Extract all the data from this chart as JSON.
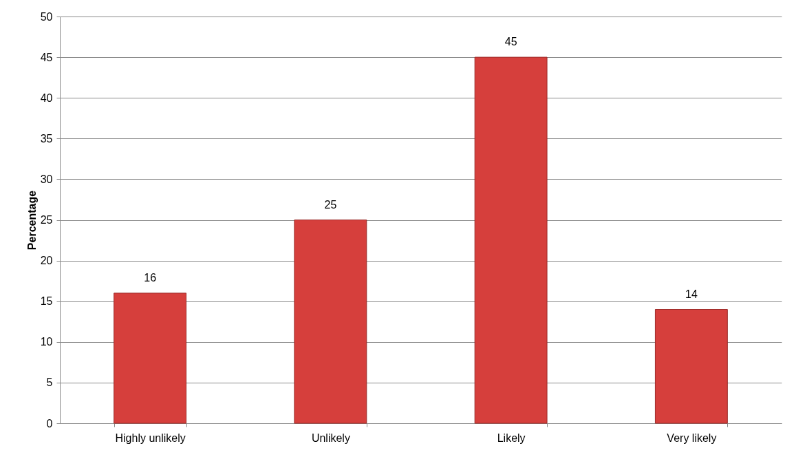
{
  "chart_data": {
    "type": "bar",
    "ylabel": "Percentage",
    "categories": [
      "Highly unlikely",
      "Unlikely",
      "Likely",
      "Very likely"
    ],
    "values": [
      16,
      25,
      45,
      14
    ],
    "color": "#d63f3c",
    "ylim": [
      0,
      50
    ],
    "yticks": [
      0,
      5,
      10,
      15,
      20,
      25,
      30,
      35,
      40,
      45,
      50
    ],
    "grid": "y",
    "data_labels": true
  }
}
